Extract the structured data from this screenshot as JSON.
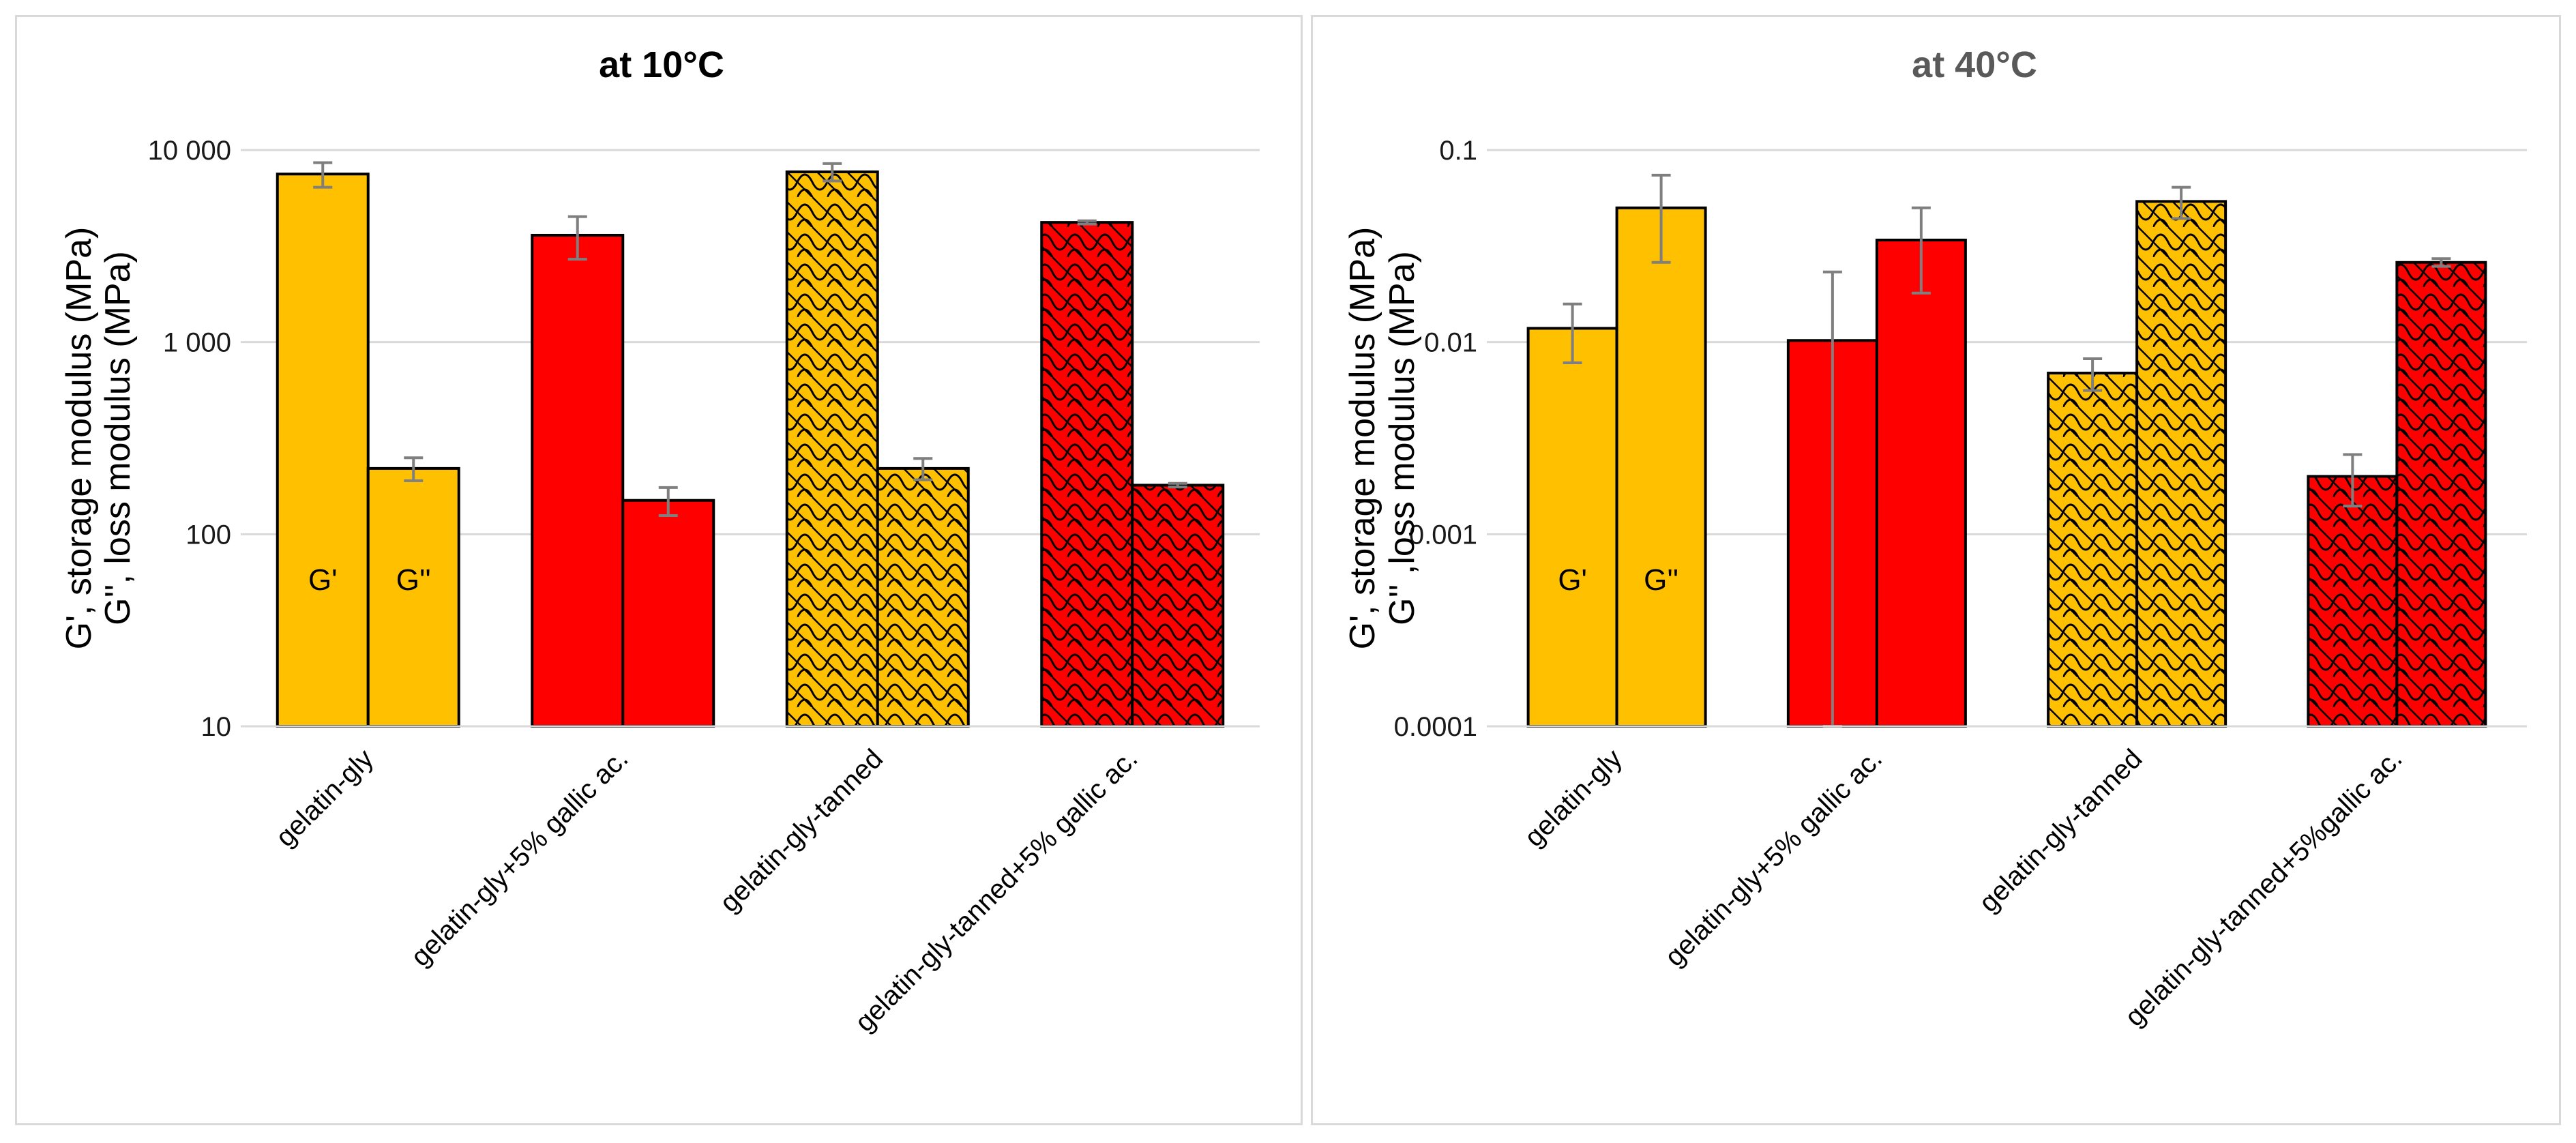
{
  "chart_data": [
    {
      "type": "bar",
      "scale": "log",
      "title": "at 10°C",
      "ylabel_line1": "G',  storage modulus (MPa)",
      "ylabel_line2": "G'', loss modulus (MPa)",
      "ylim": [
        10,
        10000
      ],
      "ytick_values": [
        10,
        100,
        1000,
        10000
      ],
      "ytick_labels": [
        "10",
        "100",
        "1 000",
        "10 000"
      ],
      "categories": [
        "gelatin-gly",
        "gelatin-gly+5%  gallic ac.",
        "gelatin-gly-tanned",
        "gelatin-gly-tanned+5% gallic ac."
      ],
      "category_colors": [
        "#ffc000",
        "#ff0000",
        "#ffc000",
        "#ff0000"
      ],
      "category_hatched": [
        false,
        false,
        true,
        true
      ],
      "series": [
        {
          "name": "G'",
          "values": [
            7500,
            3600,
            7700,
            4200
          ],
          "errors": [
            1100,
            900,
            800,
            80
          ]
        },
        {
          "name": "G''",
          "values": [
            220,
            150,
            220,
            180
          ],
          "errors": [
            30,
            25,
            28,
            4
          ]
        }
      ],
      "bar_labels": [
        "G'",
        "G''"
      ],
      "title_color": "#000000"
    },
    {
      "type": "bar",
      "scale": "log",
      "title": "at 40°C",
      "ylabel_line1": "G',  storage modulus (MPa)",
      "ylabel_line2": "G'' ,loss modulus (MPa)",
      "ylim": [
        0.0001,
        0.1
      ],
      "ytick_values": [
        0.0001,
        0.001,
        0.01,
        0.1
      ],
      "ytick_labels": [
        "0.0001",
        "0.001",
        "0.01",
        "0.1"
      ],
      "categories": [
        "gelatin-gly",
        "gelatin-gly+5%  gallic ac.",
        "gelatin-gly-tanned",
        "gelatin-gly-tanned+5%gallic ac."
      ],
      "category_colors": [
        "#ffc000",
        "#ff0000",
        "#ffc000",
        "#ff0000"
      ],
      "category_hatched": [
        false,
        false,
        true,
        true
      ],
      "series": [
        {
          "name": "G'",
          "values": [
            0.0118,
            0.0102,
            0.0069,
            0.002
          ],
          "errors": [
            0.004,
            0.013,
            0.0013,
            0.0006
          ]
        },
        {
          "name": "G''",
          "values": [
            0.05,
            0.034,
            0.054,
            0.026
          ],
          "errors": [
            0.024,
            0.016,
            0.01,
            0.0012
          ]
        }
      ],
      "bar_labels": [
        "G'",
        "G''"
      ],
      "title_color": "#595959"
    }
  ]
}
